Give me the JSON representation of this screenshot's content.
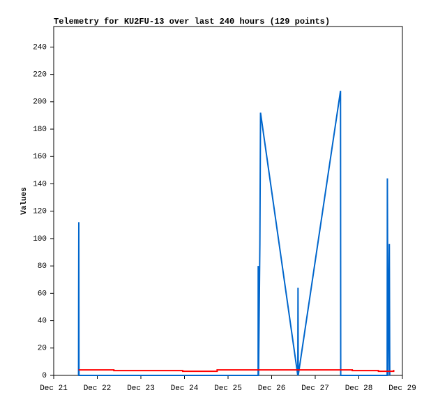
{
  "chart_data": {
    "type": "line",
    "title": "Telemetry for KU2FU-13 over last 240 hours (129 points)",
    "y_label": "Values",
    "xlim": [
      0,
      8
    ],
    "xticks": [
      {
        "value": 0,
        "label": "Dec 21"
      },
      {
        "value": 1,
        "label": "Dec 22"
      },
      {
        "value": 2,
        "label": "Dec 23"
      },
      {
        "value": 3,
        "label": "Dec 24"
      },
      {
        "value": 4,
        "label": "Dec 25"
      },
      {
        "value": 5,
        "label": "Dec 26"
      },
      {
        "value": 6,
        "label": "Dec 27"
      },
      {
        "value": 7,
        "label": "Dec 28"
      },
      {
        "value": 8,
        "label": "Dec 29"
      }
    ],
    "ylim": [
      0,
      255
    ],
    "yticks": [
      0,
      20,
      40,
      60,
      80,
      100,
      120,
      140,
      160,
      180,
      200,
      220,
      240
    ],
    "series": [
      {
        "color": "#0066cc",
        "x": [
          0.57,
          0.572,
          0.576,
          0.58,
          4.69,
          4.692,
          4.7,
          4.73,
          4.745,
          5.6,
          5.605,
          5.61,
          6.58,
          6.585,
          7.65,
          7.655,
          7.67,
          7.7,
          7.71
        ],
        "values": [
          0,
          56,
          112,
          0,
          0,
          80,
          0,
          96,
          192,
          0,
          64,
          0,
          208,
          0,
          0,
          144,
          0,
          96,
          0
        ]
      },
      {
        "color": "#ff0000",
        "x": [
          0.57,
          1.38,
          1.38,
          2.96,
          2.96,
          3.75,
          3.75,
          6.85,
          6.85,
          7.45,
          7.45,
          7.8,
          7.8
        ],
        "values": [
          4,
          4,
          3.5,
          3.5,
          3,
          3,
          4,
          4,
          3.5,
          3.5,
          3,
          3,
          4
        ]
      }
    ]
  }
}
